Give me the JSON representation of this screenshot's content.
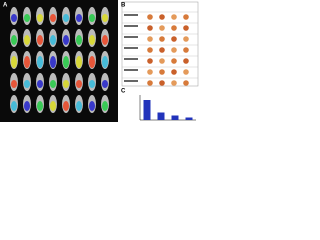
{
  "panels": [
    {
      "label": "A"
    },
    {
      "label": "B"
    },
    {
      "label": "C"
    }
  ],
  "chart_data": {
    "type": "bar",
    "categories": [
      null,
      null,
      null,
      null
    ],
    "values": [
      80,
      30,
      18,
      10
    ],
    "color": "#2233bb",
    "ylim": [
      0,
      100
    ]
  }
}
